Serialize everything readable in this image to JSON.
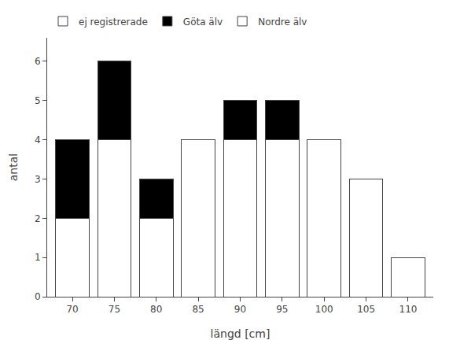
{
  "chart_data": {
    "type": "bar",
    "stacked": true,
    "x": [
      70,
      75,
      80,
      85,
      90,
      95,
      100,
      105,
      110
    ],
    "series": [
      {
        "name": "Nordre älv",
        "color": "#ffffff",
        "values": [
          2,
          4,
          2,
          4,
          4,
          4,
          4,
          3,
          1
        ]
      },
      {
        "name": "Göta älv",
        "color": "#000000",
        "values": [
          2,
          2,
          1,
          0,
          1,
          1,
          0,
          0,
          0
        ]
      },
      {
        "name": "ej registrerade",
        "color": "#ffffff",
        "values": [
          0,
          0,
          0,
          0,
          0,
          0,
          0,
          0,
          0
        ]
      }
    ],
    "xlabel": "längd [cm]",
    "ylabel": "antal",
    "xlim": [
      67,
      113
    ],
    "xticks": [
      70,
      75,
      80,
      85,
      90,
      95,
      100,
      105,
      110
    ],
    "ylim": [
      0,
      6.6
    ],
    "yticks": [
      0,
      1,
      2,
      3,
      4,
      5,
      6
    ],
    "grid": false,
    "legend": "upper left"
  }
}
